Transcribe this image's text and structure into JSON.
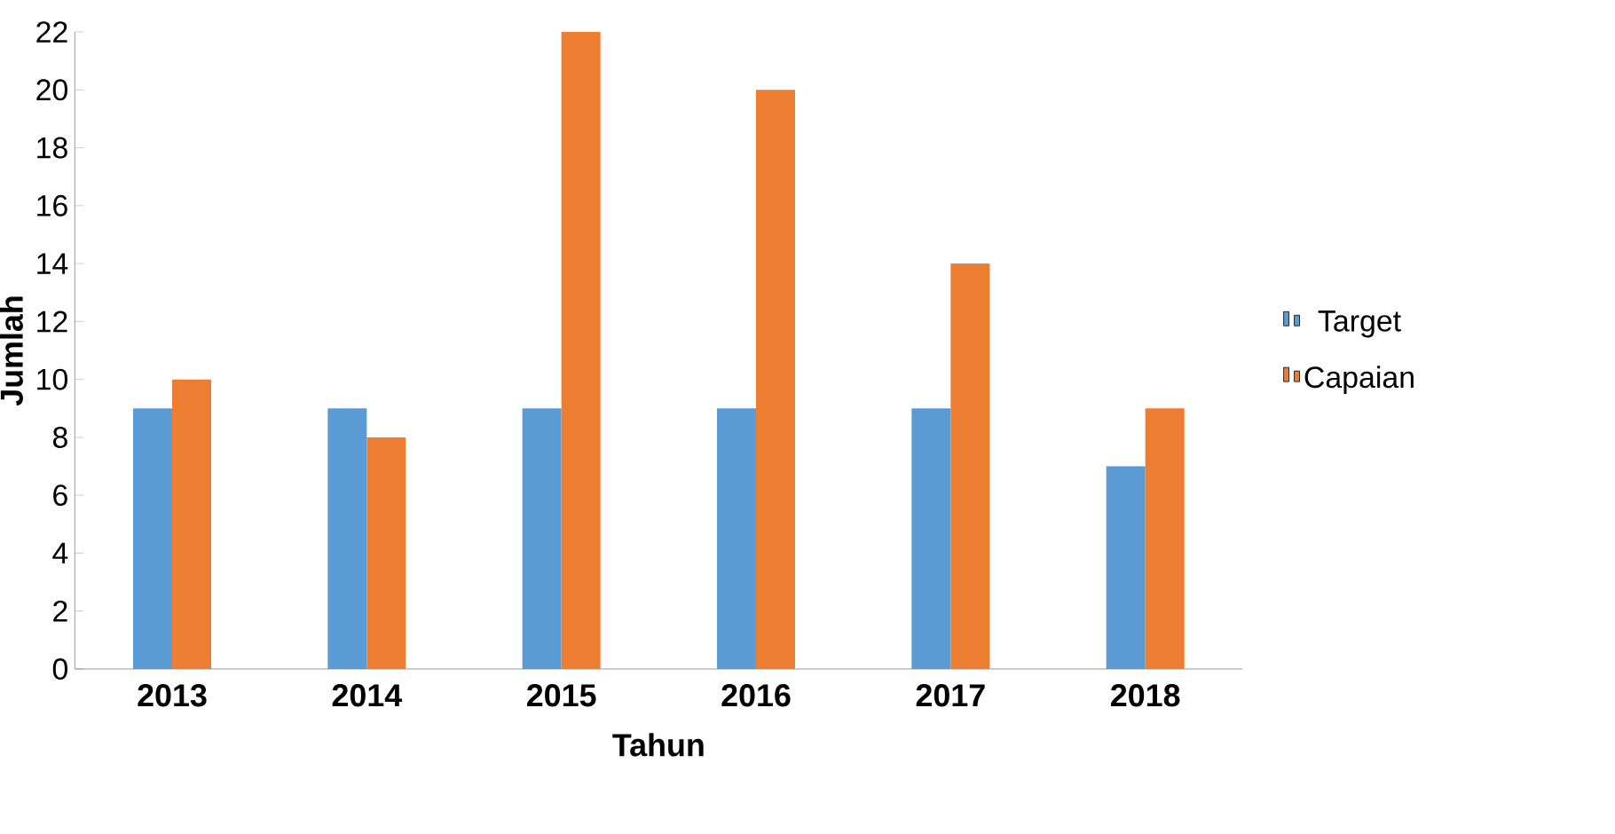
{
  "chart_data": {
    "type": "bar",
    "xlabel": "Tahun",
    "ylabel": "Jumlah",
    "categories": [
      "2013",
      "2014",
      "2015",
      "2016",
      "2017",
      "2018"
    ],
    "series": [
      {
        "name": "Target",
        "color": "#5b9bd5",
        "values": [
          9,
          9,
          9,
          9,
          9,
          7
        ]
      },
      {
        "name": "Capaian",
        "color": "#ed7d31",
        "values": [
          10,
          8,
          22,
          20,
          14,
          9
        ]
      }
    ],
    "ylim": [
      0,
      22
    ],
    "yticks": [
      0,
      2,
      4,
      6,
      8,
      10,
      12,
      14,
      16,
      18,
      20,
      22
    ],
    "grid": false,
    "legend": "right"
  }
}
